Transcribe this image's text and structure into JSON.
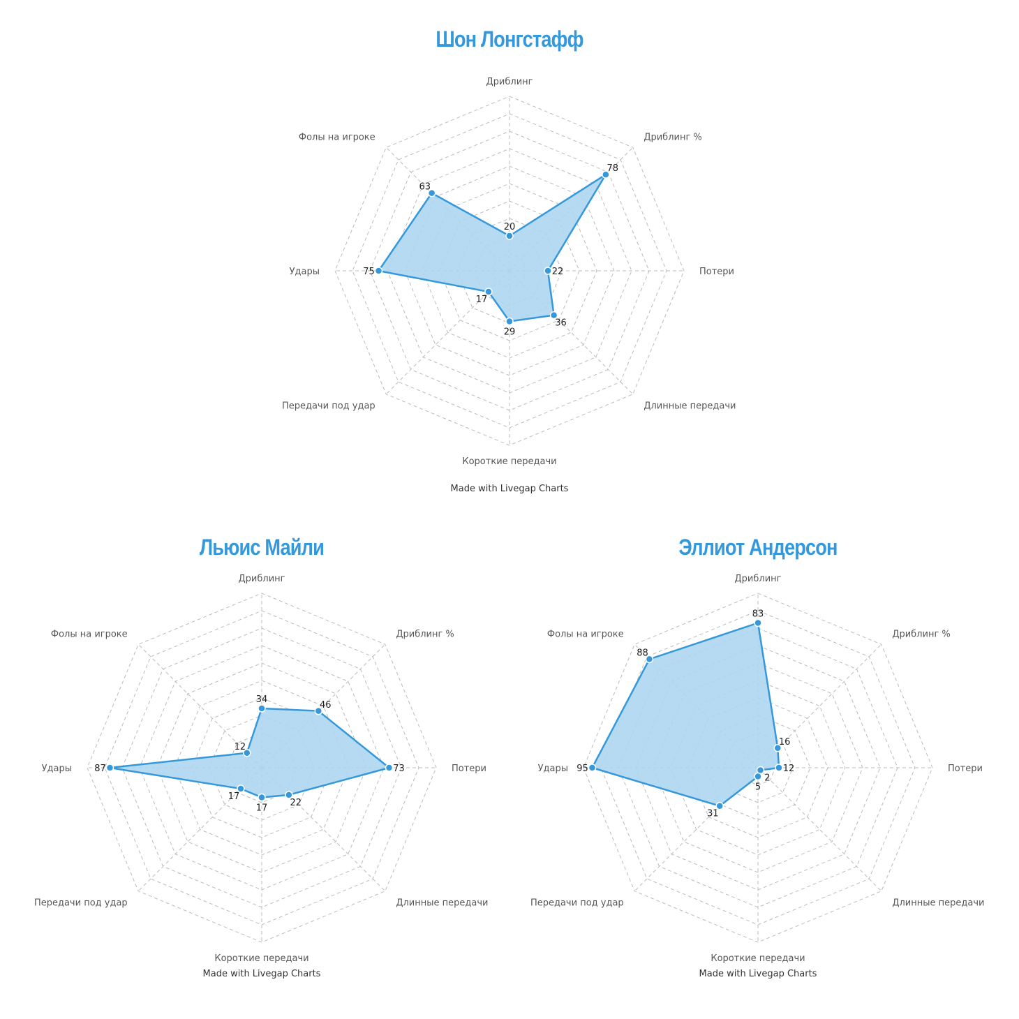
{
  "colors": {
    "accent": "#3498db",
    "fill": "#aed6f1",
    "grid": "#bbbbbb"
  },
  "chart_data": [
    {
      "type": "radar",
      "title": "Шон Лонгстафф",
      "footer": "Made with Livegap Charts",
      "categories": [
        "Дриблинг",
        "Дриблинг %",
        "Потери",
        "Длинные передачи",
        "Короткие передачи",
        "Передачи под удар",
        "Удары",
        "Фолы на игроке"
      ],
      "values": [
        20,
        78,
        22,
        36,
        29,
        17,
        75,
        63
      ],
      "rlim": [
        0,
        100
      ],
      "grid": true
    },
    {
      "type": "radar",
      "title": "Льюис Майли",
      "footer": "Made with Livegap Charts",
      "categories": [
        "Дриблинг",
        "Дриблинг %",
        "Потери",
        "Длинные передачи",
        "Короткие передачи",
        "Передачи под удар",
        "Удары",
        "Фолы на игроке"
      ],
      "values": [
        34,
        46,
        73,
        22,
        17,
        17,
        87,
        12
      ],
      "rlim": [
        0,
        100
      ],
      "grid": true
    },
    {
      "type": "radar",
      "title": "Эллиот Андерсон",
      "footer": "Made with Livegap Charts",
      "categories": [
        "Дриблинг",
        "Дриблинг %",
        "Потери",
        "Длинные передачи",
        "Короткие передачи",
        "Передачи под удар",
        "Удары",
        "Фолы на игроке"
      ],
      "values": [
        83,
        16,
        12,
        2,
        5,
        31,
        95,
        88
      ],
      "rlim": [
        0,
        100
      ],
      "grid": true
    }
  ]
}
